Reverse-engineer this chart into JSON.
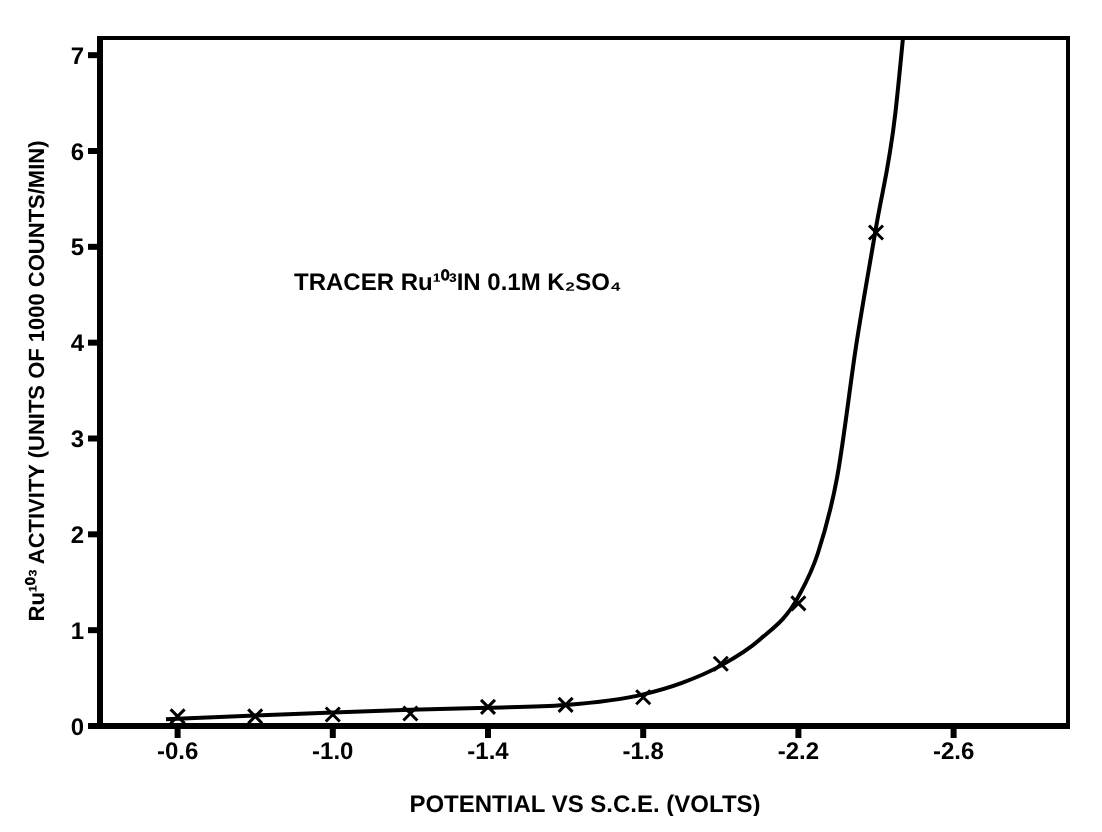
{
  "chart_data": {
    "type": "line",
    "xlabel": "POTENTIAL VS S.C.E. (VOLTS)",
    "ylabel": "Ru¹⁰³ ACTIVITY (UNITS OF 1000 COUNTS/MIN)",
    "annotations": [
      "TRACER Ru¹⁰³IN 0.1M K₂SO₄"
    ],
    "xlim": [
      -0.4,
      -2.9
    ],
    "xticks": [
      -0.6,
      {
        "value": -1.0,
        "label": "-1.0"
      },
      -1.4,
      -1.8,
      -2.2,
      -2.6
    ],
    "ylim": [
      0,
      7.2
    ],
    "yticks": [
      0,
      1,
      2,
      3,
      4,
      5,
      6,
      7
    ],
    "grid": false,
    "series": [
      {
        "color": "#000000",
        "marker": "none",
        "line_style": "solid",
        "x": [
          -0.57,
          -0.8,
          -1.0,
          -1.2,
          -1.4,
          -1.6,
          -1.8,
          -1.9,
          -2.0,
          -2.1,
          -2.2,
          -2.25,
          -2.3,
          -2.35,
          -2.4,
          -2.45,
          -2.47
        ],
        "values": [
          0.07,
          0.11,
          0.14,
          0.17,
          0.19,
          0.22,
          0.33,
          0.45,
          0.63,
          0.9,
          1.35,
          1.8,
          2.6,
          4.0,
          5.2,
          6.4,
          7.2
        ]
      },
      {
        "type": "scatter",
        "color": "#000000",
        "marker": "cross",
        "x": [
          -0.6,
          -0.8,
          -1.0,
          -1.2,
          -1.4,
          -1.6,
          -1.8,
          -2.0,
          -2.2,
          -2.4
        ],
        "values": [
          0.1,
          0.1,
          0.12,
          0.13,
          0.2,
          0.22,
          0.3,
          0.65,
          1.28,
          5.15
        ]
      }
    ]
  }
}
